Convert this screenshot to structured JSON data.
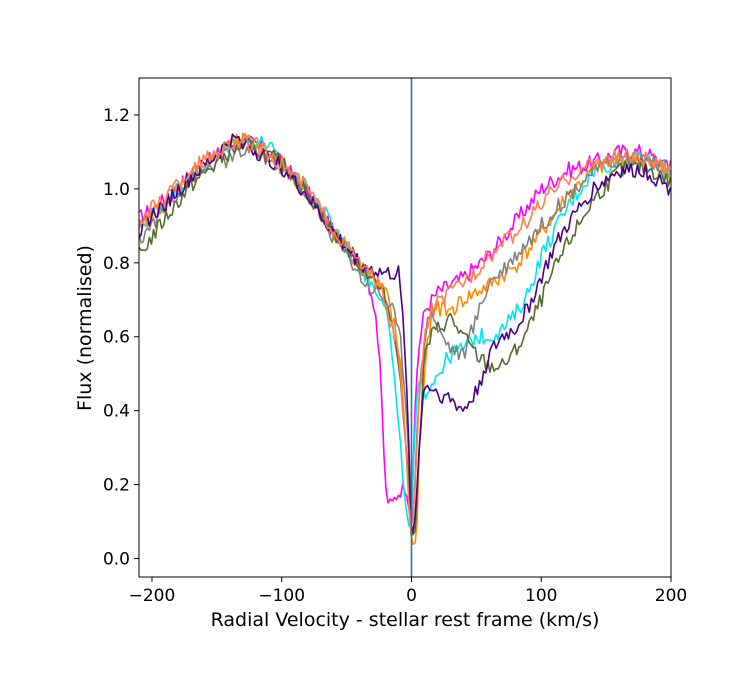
{
  "chart_data": {
    "type": "line",
    "title": "",
    "xlabel": "Radial Velocity - stellar rest frame (km/s)",
    "ylabel": "Flux (normalised)",
    "xlim": [
      -210,
      200
    ],
    "ylim": [
      -0.05,
      1.3
    ],
    "xticks": [
      -200,
      -100,
      0,
      100,
      200
    ],
    "xtick_labels": [
      "−200",
      "−100",
      "0",
      "100",
      "200"
    ],
    "yticks": [
      0.0,
      0.2,
      0.4,
      0.6,
      0.8,
      1.0,
      1.2
    ],
    "ytick_labels": [
      "0.0",
      "0.2",
      "0.4",
      "0.6",
      "0.8",
      "1.0",
      "1.2"
    ],
    "grid": false,
    "vline": {
      "x": 0,
      "color": "#1f77b4"
    },
    "series": [
      {
        "color": "#ff00ff",
        "x": [
          -210,
          -190,
          -170,
          -150,
          -140,
          -130,
          -120,
          -100,
          -80,
          -60,
          -45,
          -35,
          -28,
          -24,
          -22,
          -20,
          -16,
          -12,
          -8,
          -4,
          -1,
          0,
          2,
          5,
          10,
          20,
          40,
          60,
          80,
          100,
          120,
          140,
          160,
          180,
          200
        ],
        "y": [
          0.92,
          0.97,
          1.04,
          1.09,
          1.12,
          1.13,
          1.12,
          1.07,
          0.99,
          0.88,
          0.83,
          0.77,
          0.68,
          0.5,
          0.35,
          0.18,
          0.14,
          0.17,
          0.19,
          0.18,
          0.12,
          0.05,
          0.35,
          0.55,
          0.67,
          0.72,
          0.76,
          0.82,
          0.91,
          1.0,
          1.05,
          1.07,
          1.1,
          1.1,
          1.05
        ]
      },
      {
        "color": "#00e5ee",
        "x": [
          -210,
          -190,
          -170,
          -150,
          -140,
          -130,
          -120,
          -110,
          -100,
          -80,
          -60,
          -40,
          -30,
          -20,
          -14,
          -10,
          -6,
          -3,
          -1,
          0,
          2,
          5,
          10,
          20,
          30,
          40,
          50,
          60,
          70,
          80,
          90,
          100,
          120,
          140,
          160,
          180,
          200
        ],
        "y": [
          0.9,
          0.97,
          1.03,
          1.09,
          1.12,
          1.13,
          1.13,
          1.12,
          1.06,
          1.0,
          0.9,
          0.79,
          0.74,
          0.7,
          0.52,
          0.35,
          0.2,
          0.1,
          0.07,
          0.12,
          0.3,
          0.48,
          0.45,
          0.5,
          0.55,
          0.57,
          0.6,
          0.6,
          0.62,
          0.66,
          0.72,
          0.82,
          0.95,
          1.05,
          1.08,
          1.08,
          1.04
        ]
      },
      {
        "color": "#ff8c00",
        "x": [
          -210,
          -190,
          -170,
          -150,
          -140,
          -130,
          -120,
          -100,
          -80,
          -60,
          -40,
          -30,
          -20,
          -12,
          -8,
          -5,
          -2,
          0,
          2,
          4,
          6,
          10,
          15,
          20,
          30,
          40,
          60,
          80,
          100,
          120,
          140,
          160,
          180,
          200
        ],
        "y": [
          0.89,
          0.97,
          1.04,
          1.09,
          1.12,
          1.13,
          1.12,
          1.07,
          0.99,
          0.88,
          0.79,
          0.76,
          0.72,
          0.62,
          0.5,
          0.35,
          0.15,
          0.04,
          0.04,
          0.05,
          0.3,
          0.5,
          0.65,
          0.68,
          0.67,
          0.7,
          0.74,
          0.79,
          0.88,
          0.98,
          1.05,
          1.08,
          1.08,
          1.04
        ]
      },
      {
        "color": "#808080",
        "x": [
          -210,
          -190,
          -170,
          -150,
          -140,
          -130,
          -120,
          -100,
          -80,
          -60,
          -45,
          -35,
          -25,
          -15,
          -8,
          -4,
          -1,
          0,
          2,
          5,
          10,
          15,
          20,
          30,
          40,
          50,
          60,
          70,
          80,
          100,
          120,
          140,
          160,
          180,
          200
        ],
        "y": [
          0.86,
          0.95,
          1.03,
          1.07,
          1.08,
          1.1,
          1.1,
          1.06,
          0.98,
          0.87,
          0.8,
          0.74,
          0.72,
          0.68,
          0.58,
          0.4,
          0.2,
          0.05,
          0.15,
          0.4,
          0.6,
          0.68,
          0.62,
          0.57,
          0.55,
          0.65,
          0.75,
          0.78,
          0.82,
          0.9,
          0.98,
          1.05,
          1.08,
          1.08,
          1.06
        ]
      },
      {
        "color": "#556b2f",
        "x": [
          -210,
          -190,
          -170,
          -150,
          -140,
          -130,
          -120,
          -100,
          -80,
          -60,
          -40,
          -30,
          -20,
          -12,
          -8,
          -4,
          -1,
          0,
          3,
          6,
          10,
          15,
          20,
          30,
          40,
          50,
          60,
          70,
          80,
          90,
          100,
          110,
          120,
          140,
          160,
          180,
          200
        ],
        "y": [
          0.82,
          0.92,
          1.01,
          1.07,
          1.1,
          1.12,
          1.11,
          1.07,
          0.99,
          0.88,
          0.8,
          0.76,
          0.7,
          0.6,
          0.45,
          0.3,
          0.15,
          0.05,
          0.08,
          0.3,
          0.55,
          0.6,
          0.62,
          0.65,
          0.6,
          0.55,
          0.52,
          0.52,
          0.56,
          0.62,
          0.7,
          0.78,
          0.85,
          0.97,
          1.05,
          1.06,
          1.02
        ]
      },
      {
        "color": "#4b0082",
        "x": [
          -210,
          -190,
          -170,
          -150,
          -140,
          -130,
          -120,
          -100,
          -80,
          -60,
          -40,
          -30,
          -20,
          -10,
          -6,
          -3,
          -1,
          0,
          3,
          6,
          10,
          15,
          20,
          30,
          40,
          50,
          60,
          70,
          80,
          90,
          100,
          110,
          120,
          140,
          160,
          180,
          200
        ],
        "y": [
          0.89,
          0.96,
          1.03,
          1.09,
          1.13,
          1.13,
          1.1,
          1.06,
          0.98,
          0.88,
          0.8,
          0.78,
          0.77,
          0.77,
          0.62,
          0.42,
          0.18,
          0.04,
          0.12,
          0.3,
          0.48,
          0.46,
          0.45,
          0.43,
          0.4,
          0.45,
          0.55,
          0.6,
          0.62,
          0.68,
          0.76,
          0.84,
          0.9,
          1.0,
          1.05,
          1.05,
          1.0
        ]
      },
      {
        "color": "#ff7f50",
        "x": [
          -210,
          -190,
          -170,
          -150,
          -140,
          -130,
          -120,
          -100,
          -80,
          -60,
          -40,
          -30,
          -20,
          -10,
          -5,
          -2,
          0,
          3,
          6,
          10,
          15,
          20,
          30,
          40,
          50,
          60,
          80,
          100,
          120,
          140,
          160,
          180,
          200
        ],
        "y": [
          0.91,
          0.98,
          1.05,
          1.1,
          1.12,
          1.13,
          1.12,
          1.07,
          1.0,
          0.89,
          0.8,
          0.76,
          0.7,
          0.55,
          0.35,
          0.15,
          0.06,
          0.2,
          0.45,
          0.6,
          0.67,
          0.69,
          0.72,
          0.75,
          0.78,
          0.82,
          0.88,
          0.96,
          1.03,
          1.07,
          1.09,
          1.08,
          1.04
        ]
      }
    ]
  }
}
